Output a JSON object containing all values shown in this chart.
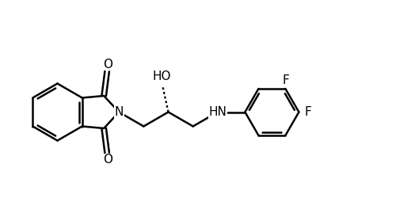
{
  "background_color": "#ffffff",
  "line_color": "#000000",
  "line_width": 1.8,
  "font_size": 11,
  "figsize": [
    5.0,
    2.74
  ],
  "dpi": 100,
  "xlim": [
    0,
    10
  ],
  "ylim": [
    0,
    5.48
  ]
}
